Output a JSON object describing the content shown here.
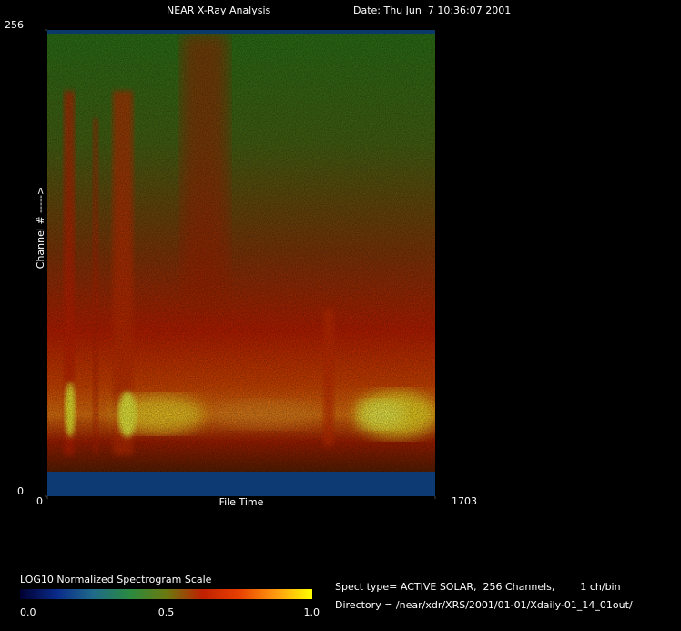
{
  "chart_data": {
    "type": "spectrogram",
    "title": "NEAR X-Ray Analysis",
    "subtitle": "Date: Thu Jun  7 10:36:07 2001",
    "x_label": "File Time",
    "y_label": "Channel # ----->",
    "xlim": [
      0,
      1703
    ],
    "xticks": [
      0,
      1703
    ],
    "ylim": [
      0,
      256
    ],
    "yticks": [
      0,
      256
    ],
    "colorbar": {
      "title": "LOG10 Normalized Spectrogram Scale",
      "lim": [
        0,
        1
      ],
      "ticks": [
        {
          "value": 0,
          "label": "0.0"
        },
        {
          "value": 0.5,
          "label": "0.5"
        },
        {
          "value": 1,
          "label": "1.0"
        }
      ],
      "colors": [
        "#000030",
        "#0a2a8a",
        "#1f6a8a",
        "#2a8a40",
        "#6a7a10",
        "#c02000",
        "#e84000",
        "#ff9a10",
        "#ffff00"
      ]
    }
  },
  "info": {
    "spect_type": "Spect type= ACTIVE SOLAR,  256 Channels,        1 ch/bin",
    "directory": "Directory = /near/xdr/XRS/2001/01-01/Xdaily-01_14_01out/"
  }
}
